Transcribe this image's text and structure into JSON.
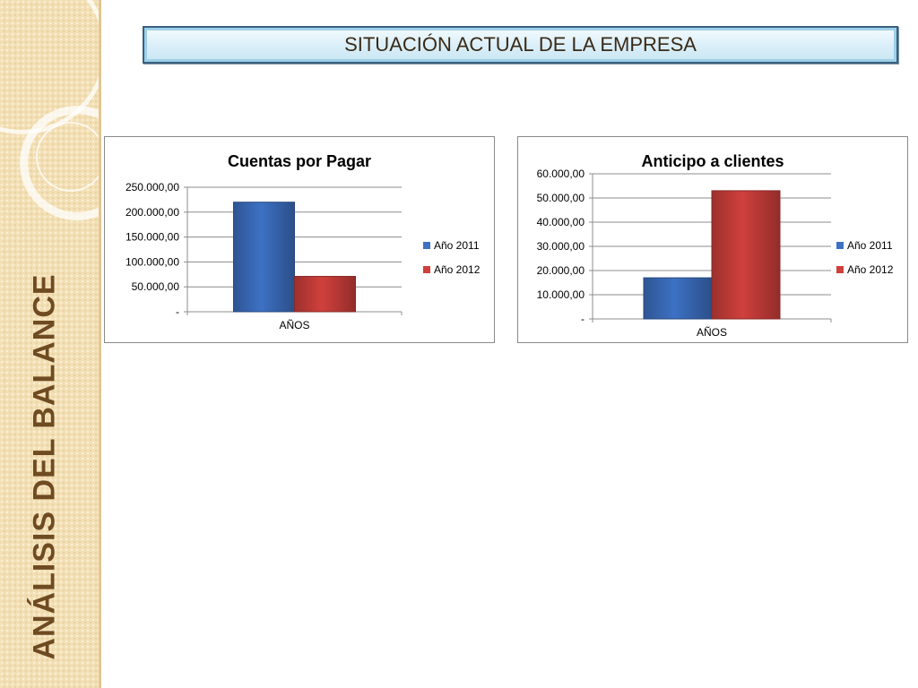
{
  "side_title": "ANÁLISIS DEL BALANCE",
  "header": {
    "title": "SITUACIÓN ACTUAL DE LA EMPRESA"
  },
  "colors": {
    "series_2011": "#3d71c4",
    "series_2012": "#d0403c",
    "side_text": "#6f4b22"
  },
  "chart_data": [
    {
      "type": "bar",
      "title": "Cuentas por Pagar",
      "categories": [
        "AÑOS"
      ],
      "series": [
        {
          "name": "Año 2011",
          "values": [
            220000
          ]
        },
        {
          "name": "Año 2012",
          "values": [
            71000
          ]
        }
      ],
      "ylim": [
        0,
        250000
      ],
      "yticks": [
        0,
        50000,
        100000,
        150000,
        200000,
        250000
      ],
      "ytick_labels": [
        "-",
        "50.000,00",
        "100.000,00",
        "150.000,00",
        "200.000,00",
        "250.000,00"
      ],
      "grid": true,
      "legend": "right"
    },
    {
      "type": "bar",
      "title": "Anticipo a clientes",
      "categories": [
        "AÑOS"
      ],
      "series": [
        {
          "name": "Año 2011",
          "values": [
            17000
          ]
        },
        {
          "name": "Año 2012",
          "values": [
            53000
          ]
        }
      ],
      "ylim": [
        0,
        60000
      ],
      "yticks": [
        0,
        10000,
        20000,
        30000,
        40000,
        50000,
        60000
      ],
      "ytick_labels": [
        "-",
        "10.000,00",
        "20.000,00",
        "30.000,00",
        "40.000,00",
        "50.000,00",
        "60.000,00"
      ],
      "grid": true,
      "legend": "right"
    }
  ]
}
